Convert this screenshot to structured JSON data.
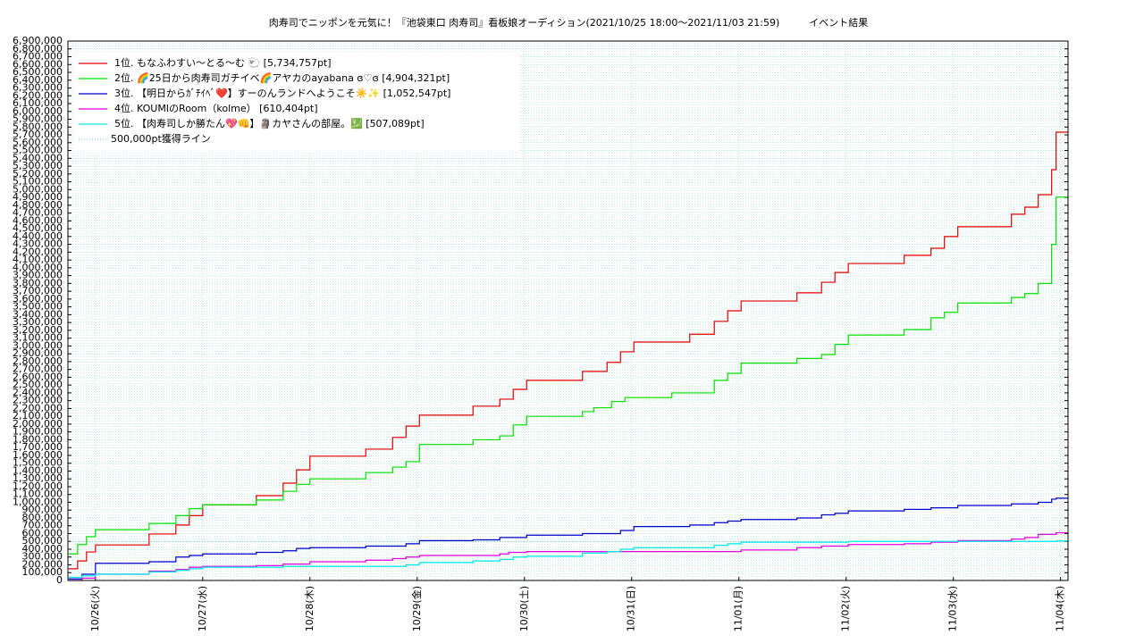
{
  "chart_data": {
    "type": "step-line",
    "title": "肉寿司でニッポンを元気に！『池袋東口 肉寿司』看板娘オーディション(2021/10/25 18:00〜2021/11/03 21:59)　　　イベント結果",
    "xlim": [
      "2021-10-25T17:50",
      "2021-11-04T01:40"
    ],
    "xticks": [
      {
        "value": "2021-10-26T00:00",
        "label": "10/26(火)"
      },
      {
        "value": "2021-10-27T00:00",
        "label": "10/27(水)"
      },
      {
        "value": "2021-10-28T00:00",
        "label": "10/28(木)"
      },
      {
        "value": "2021-10-29T00:00",
        "label": "10/29(金)"
      },
      {
        "value": "2021-10-30T00:00",
        "label": "10/30(土)"
      },
      {
        "value": "2021-10-31T00:00",
        "label": "10/31(日)"
      },
      {
        "value": "2021-11-01T00:00",
        "label": "11/01(月)"
      },
      {
        "value": "2021-11-02T00:00",
        "label": "11/02(火)"
      },
      {
        "value": "2021-11-03T00:00",
        "label": "11/03(水)"
      },
      {
        "value": "2021-11-04T00:00",
        "label": "11/04(木)"
      }
    ],
    "ylim": [
      0,
      6900000
    ],
    "yticks": [
      0,
      {
        "value": 100000,
        "label": "100,000"
      },
      {
        "value": 200000,
        "label": "200,000"
      },
      {
        "value": 300000,
        "label": "300,000"
      },
      {
        "value": 400000,
        "label": "400,000"
      },
      {
        "value": 500000,
        "label": "500,000"
      },
      {
        "value": 600000,
        "label": "600,000"
      },
      {
        "value": 700000,
        "label": "700,000"
      },
      {
        "value": 800000,
        "label": "800,000"
      },
      {
        "value": 900000,
        "label": "900,000"
      },
      {
        "value": 1000000,
        "label": "1,000,000"
      },
      {
        "value": 1100000,
        "label": "1,100,000"
      },
      {
        "value": 1200000,
        "label": "1,200,000"
      },
      {
        "value": 1300000,
        "label": "1,300,000"
      },
      {
        "value": 1400000,
        "label": "1,400,000"
      },
      {
        "value": 1500000,
        "label": "1,500,000"
      },
      {
        "value": 1600000,
        "label": "1,600,000"
      },
      {
        "value": 1700000,
        "label": "1,700,000"
      },
      {
        "value": 1800000,
        "label": "1,800,000"
      },
      {
        "value": 1900000,
        "label": "1,900,000"
      },
      {
        "value": 2000000,
        "label": "2,000,000"
      },
      {
        "value": 2100000,
        "label": "2,100,000"
      },
      {
        "value": 2200000,
        "label": "2,200,000"
      },
      {
        "value": 2300000,
        "label": "2,300,000"
      },
      {
        "value": 2400000,
        "label": "2,400,000"
      },
      {
        "value": 2500000,
        "label": "2,500,000"
      },
      {
        "value": 2600000,
        "label": "2,600,000"
      },
      {
        "value": 2700000,
        "label": "2,700,000"
      },
      {
        "value": 2800000,
        "label": "2,800,000"
      },
      {
        "value": 2900000,
        "label": "2,900,000"
      },
      {
        "value": 3000000,
        "label": "3,000,000"
      },
      {
        "value": 3100000,
        "label": "3,100,000"
      },
      {
        "value": 3200000,
        "label": "3,200,000"
      },
      {
        "value": 3300000,
        "label": "3,300,000"
      },
      {
        "value": 3400000,
        "label": "3,400,000"
      },
      {
        "value": 3500000,
        "label": "3,500,000"
      },
      {
        "value": 3600000,
        "label": "3,600,000"
      },
      {
        "value": 3700000,
        "label": "3,700,000"
      },
      {
        "value": 3800000,
        "label": "3,800,000"
      },
      {
        "value": 3900000,
        "label": "3,900,000"
      },
      {
        "value": 4000000,
        "label": "4,000,000"
      },
      {
        "value": 4100000,
        "label": "4,100,000"
      },
      {
        "value": 4200000,
        "label": "4,200,000"
      },
      {
        "value": 4300000,
        "label": "4,300,000"
      },
      {
        "value": 4400000,
        "label": "4,400,000"
      },
      {
        "value": 4500000,
        "label": "4,500,000"
      },
      {
        "value": 4600000,
        "label": "4,600,000"
      },
      {
        "value": 4700000,
        "label": "4,700,000"
      },
      {
        "value": 4800000,
        "label": "4,800,000"
      },
      {
        "value": 4900000,
        "label": "4,900,000"
      },
      {
        "value": 5000000,
        "label": "5,000,000"
      },
      {
        "value": 5100000,
        "label": "5,100,000"
      },
      {
        "value": 5200000,
        "label": "5,200,000"
      },
      {
        "value": 5300000,
        "label": "5,300,000"
      },
      {
        "value": 5400000,
        "label": "5,400,000"
      },
      {
        "value": 5500000,
        "label": "5,500,000"
      },
      {
        "value": 5600000,
        "label": "5,600,000"
      },
      {
        "value": 5700000,
        "label": "5,700,000"
      },
      {
        "value": 5800000,
        "label": "5,800,000"
      },
      {
        "value": 5900000,
        "label": "5,900,000"
      },
      {
        "value": 6000000,
        "label": "6,000,000"
      },
      {
        "value": 6100000,
        "label": "6,100,000"
      },
      {
        "value": 6200000,
        "label": "6,200,000"
      },
      {
        "value": 6300000,
        "label": "6,300,000"
      },
      {
        "value": 6400000,
        "label": "6,400,000"
      },
      {
        "value": 6500000,
        "label": "6,500,000"
      },
      {
        "value": 6600000,
        "label": "6,600,000"
      },
      {
        "value": 6700000,
        "label": "6,700,000"
      },
      {
        "value": 6800000,
        "label": "6,800,000"
      },
      {
        "value": 6900000,
        "label": "6,900,000"
      }
    ],
    "grid": true,
    "legend": "top-left",
    "series": [
      {
        "name": "1位. もなふわすい〜とる〜む 🐑 [5,734,757pt]",
        "color": "#e00000",
        "x": [
          "2021-10-25T18:00",
          "2021-10-25T20:00",
          "2021-10-25T22:00",
          "2021-10-26T00:00",
          "2021-10-26T12:00",
          "2021-10-26T18:00",
          "2021-10-26T21:00",
          "2021-10-27T00:00",
          "2021-10-27T12:00",
          "2021-10-27T18:00",
          "2021-10-27T21:00",
          "2021-10-28T00:00",
          "2021-10-28T12:30",
          "2021-10-28T18:30",
          "2021-10-28T21:30",
          "2021-10-29T00:30",
          "2021-10-29T12:30",
          "2021-10-29T18:30",
          "2021-10-29T21:30",
          "2021-10-30T00:30",
          "2021-10-30T13:00",
          "2021-10-30T18:30",
          "2021-10-30T21:30",
          "2021-10-31T00:30",
          "2021-10-31T13:00",
          "2021-10-31T18:30",
          "2021-10-31T21:30",
          "2021-11-01T00:30",
          "2021-11-01T13:00",
          "2021-11-01T18:30",
          "2021-11-01T21:30",
          "2021-11-02T00:30",
          "2021-11-02T13:00",
          "2021-11-02T19:00",
          "2021-11-02T22:00",
          "2021-11-03T01:00",
          "2021-11-03T13:00",
          "2021-11-03T16:00",
          "2021-11-03T19:00",
          "2021-11-03T22:00",
          "2021-11-03T23:00"
        ],
        "values": [
          150000,
          250000,
          365000,
          455000,
          595000,
          710000,
          830000,
          970000,
          1085000,
          1245000,
          1415000,
          1590000,
          1680000,
          1830000,
          1975000,
          2115000,
          2230000,
          2320000,
          2445000,
          2560000,
          2675000,
          2790000,
          2925000,
          3050000,
          3150000,
          3315000,
          3450000,
          3575000,
          3680000,
          3815000,
          3940000,
          4055000,
          4160000,
          4250000,
          4400000,
          4525000,
          4685000,
          4775000,
          4935000,
          5255000,
          5734757
        ]
      },
      {
        "name": "2位. 🌈25日から肉寿司ガチイベ🌈アヤカのayabana ɞ♡ɞ [4,904,321pt]",
        "color": "#00e000",
        "x": [
          "2021-10-25T18:00",
          "2021-10-25T20:00",
          "2021-10-25T22:00",
          "2021-10-26T00:00",
          "2021-10-26T12:00",
          "2021-10-26T18:00",
          "2021-10-26T21:00",
          "2021-10-27T00:00",
          "2021-10-27T12:00",
          "2021-10-27T18:00",
          "2021-10-27T21:00",
          "2021-10-28T00:00",
          "2021-10-28T12:30",
          "2021-10-28T18:30",
          "2021-10-28T21:30",
          "2021-10-29T00:30",
          "2021-10-29T12:30",
          "2021-10-29T18:30",
          "2021-10-29T21:30",
          "2021-10-30T00:30",
          "2021-10-30T13:00",
          "2021-10-30T15:30",
          "2021-10-30T19:30",
          "2021-10-30T22:30",
          "2021-10-31T09:00",
          "2021-10-31T18:30",
          "2021-10-31T21:30",
          "2021-11-01T00:30",
          "2021-11-01T13:00",
          "2021-11-01T18:30",
          "2021-11-01T21:30",
          "2021-11-02T00:30",
          "2021-11-02T13:00",
          "2021-11-02T19:00",
          "2021-11-02T22:00",
          "2021-11-03T01:00",
          "2021-11-03T13:00",
          "2021-11-03T16:00",
          "2021-11-03T19:00",
          "2021-11-03T22:00",
          "2021-11-03T23:00"
        ],
        "values": [
          340000,
          460000,
          560000,
          650000,
          730000,
          830000,
          920000,
          970000,
          1030000,
          1140000,
          1230000,
          1300000,
          1380000,
          1450000,
          1520000,
          1740000,
          1800000,
          1850000,
          1990000,
          2100000,
          2160000,
          2210000,
          2290000,
          2340000,
          2400000,
          2560000,
          2650000,
          2780000,
          2840000,
          2890000,
          3020000,
          3140000,
          3210000,
          3360000,
          3430000,
          3550000,
          3620000,
          3670000,
          3800000,
          4300000,
          4904321
        ]
      },
      {
        "name": "3位. 【明日からｶﾞﾁｲﾍﾞ❤️】すーのんランドへようこそ☀️✨ [1,052,547pt]",
        "color": "#0000c8",
        "x": [
          "2021-10-25T18:00",
          "2021-10-25T21:00",
          "2021-10-26T00:00",
          "2021-10-26T12:00",
          "2021-10-26T18:00",
          "2021-10-26T21:00",
          "2021-10-27T00:00",
          "2021-10-27T12:00",
          "2021-10-27T18:00",
          "2021-10-27T21:00",
          "2021-10-28T00:00",
          "2021-10-28T12:30",
          "2021-10-28T21:30",
          "2021-10-29T00:30",
          "2021-10-29T12:30",
          "2021-10-29T18:30",
          "2021-10-30T00:30",
          "2021-10-30T13:00",
          "2021-10-30T21:30",
          "2021-10-31T00:30",
          "2021-10-31T13:00",
          "2021-10-31T18:30",
          "2021-10-31T21:30",
          "2021-11-01T00:30",
          "2021-11-01T13:00",
          "2021-11-01T18:30",
          "2021-11-01T21:30",
          "2021-11-02T00:30",
          "2021-11-02T13:00",
          "2021-11-02T19:00",
          "2021-11-03T01:00",
          "2021-11-03T13:00",
          "2021-11-03T19:00",
          "2021-11-03T22:00",
          "2021-11-03T23:00"
        ],
        "values": [
          20000,
          80000,
          220000,
          240000,
          300000,
          320000,
          340000,
          360000,
          380000,
          410000,
          420000,
          440000,
          470000,
          510000,
          520000,
          550000,
          580000,
          600000,
          640000,
          690000,
          710000,
          740000,
          760000,
          780000,
          800000,
          840000,
          860000,
          890000,
          910000,
          930000,
          960000,
          980000,
          1000000,
          1040000,
          1052547
        ]
      },
      {
        "name": "4位. KOUMIのRoom（kolme） [610,404pt]",
        "color": "#e000e0",
        "x": [
          "2021-10-25T18:00",
          "2021-10-25T21:00",
          "2021-10-26T00:00",
          "2021-10-26T12:00",
          "2021-10-26T18:00",
          "2021-10-26T21:00",
          "2021-10-27T00:00",
          "2021-10-27T12:00",
          "2021-10-27T18:00",
          "2021-10-28T00:00",
          "2021-10-28T12:30",
          "2021-10-28T18:30",
          "2021-10-28T21:30",
          "2021-10-29T00:30",
          "2021-10-29T18:30",
          "2021-10-29T20:30",
          "2021-10-30T00:30",
          "2021-11-01T00:30",
          "2021-11-01T13:00",
          "2021-11-01T18:30",
          "2021-11-02T00:30",
          "2021-11-02T13:00",
          "2021-11-02T19:00",
          "2021-11-03T01:00",
          "2021-11-03T13:00",
          "2021-11-03T16:00",
          "2021-11-03T19:00",
          "2021-11-03T23:00"
        ],
        "values": [
          0,
          30000,
          80000,
          120000,
          140000,
          170000,
          180000,
          190000,
          210000,
          240000,
          260000,
          280000,
          300000,
          320000,
          340000,
          360000,
          370000,
          390000,
          420000,
          440000,
          460000,
          470000,
          490000,
          510000,
          530000,
          550000,
          590000,
          610404
        ]
      },
      {
        "name": "5位. 【肉寿司しか勝たん💖👊】🗿カヤさんの部屋。💹 [507,089pt]",
        "color": "#00e8e8",
        "x": [
          "2021-10-25T18:00",
          "2021-10-25T21:00",
          "2021-10-26T00:00",
          "2021-10-26T12:00",
          "2021-10-26T18:00",
          "2021-10-26T21:00",
          "2021-10-27T00:00",
          "2021-10-27T18:00",
          "2021-10-28T21:30",
          "2021-10-29T00:30",
          "2021-10-29T12:30",
          "2021-10-29T18:30",
          "2021-10-29T21:30",
          "2021-10-30T00:30",
          "2021-10-30T13:00",
          "2021-10-30T18:30",
          "2021-10-30T21:30",
          "2021-10-31T00:30",
          "2021-10-31T18:30",
          "2021-10-31T21:30",
          "2021-11-01T00:30",
          "2021-11-02T00:30",
          "2021-11-03T23:00"
        ],
        "values": [
          40000,
          60000,
          80000,
          110000,
          130000,
          150000,
          170000,
          180000,
          200000,
          230000,
          250000,
          270000,
          300000,
          310000,
          350000,
          370000,
          400000,
          420000,
          450000,
          470000,
          490000,
          500000,
          507089
        ]
      }
    ],
    "reference_line": {
      "name": "500,000pt獲得ライン",
      "value": 500000,
      "color": "#66cccc"
    }
  }
}
